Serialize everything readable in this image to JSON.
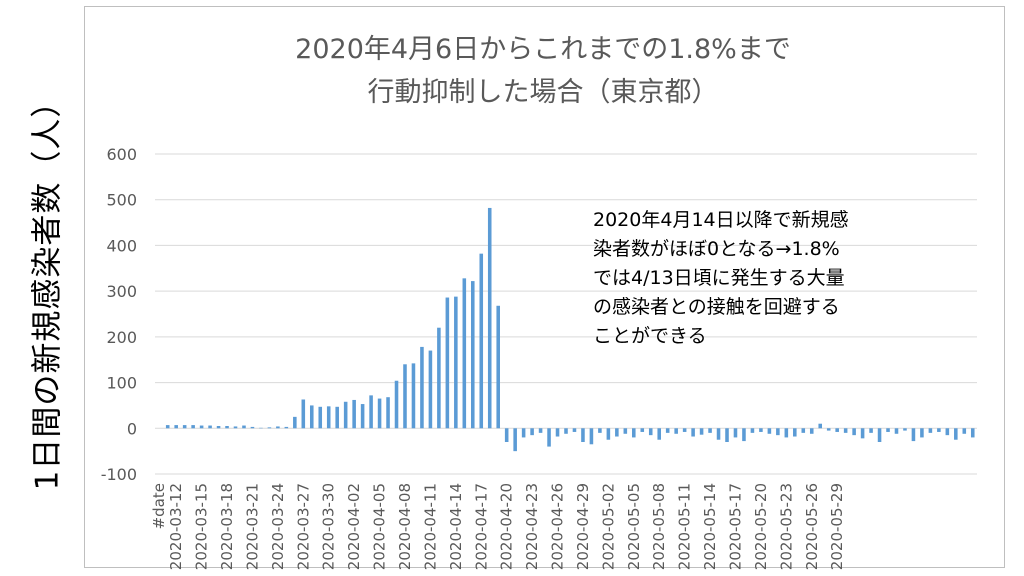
{
  "chart_data": {
    "type": "bar",
    "title_lines": [
      "2020年4月6日からこれまでの1.8%まで",
      "行動抑制した場合（東京都）"
    ],
    "ylabel": "1日間の新規感染者数（人）",
    "xlabel": "",
    "ylim": [
      -100,
      600
    ],
    "yticks": [
      -100,
      0,
      100,
      200,
      300,
      400,
      500,
      600
    ],
    "grid": true,
    "legend": "none",
    "bar_color": "#5b9bd5",
    "first_category": "#date",
    "start_date": "2020-03-10",
    "x_tick_labels": [
      "#date",
      "2020-03-12",
      "2020-03-15",
      "2020-03-18",
      "2020-03-21",
      "2020-03-24",
      "2020-03-27",
      "2020-03-30",
      "2020-04-02",
      "2020-04-05",
      "2020-04-08",
      "2020-04-11",
      "2020-04-14",
      "2020-04-17",
      "2020-04-20",
      "2020-04-23",
      "2020-04-26",
      "2020-04-29",
      "2020-05-02",
      "2020-05-05",
      "2020-05-08",
      "2020-05-11",
      "2020-05-14",
      "2020-05-17",
      "2020-05-20",
      "2020-05-23",
      "2020-05-26",
      "2020-05-29"
    ],
    "values": [
      0,
      7,
      7,
      7,
      7,
      6,
      6,
      5,
      5,
      4,
      6,
      3,
      1,
      2,
      4,
      3,
      25,
      63,
      50,
      47,
      48,
      47,
      58,
      62,
      53,
      72,
      65,
      68,
      104,
      140,
      142,
      178,
      170,
      220,
      286,
      288,
      328,
      322,
      382,
      482,
      268,
      -30,
      -50,
      -20,
      -15,
      -10,
      -40,
      -18,
      -12,
      -8,
      -30,
      -35,
      -10,
      -25,
      -18,
      -12,
      -20,
      -8,
      -15,
      -25,
      -10,
      -12,
      -8,
      -18,
      -14,
      -10,
      -25,
      -30,
      -20,
      -28,
      -10,
      -8,
      -12,
      -15,
      -20,
      -18,
      -10,
      -12,
      10,
      -5,
      -8,
      -10,
      -15,
      -22,
      -10,
      -30,
      -8,
      -12,
      -5,
      -28,
      -20,
      -10,
      -8,
      -15,
      -25,
      -12,
      -20
    ],
    "annotation_lines": [
      "2020年4月14日以降で新規感",
      "染者数がほぼ0となる→1.8%",
      "では4/13日頃に発生する大量",
      "の感染者との接触を回避する",
      "ことができる"
    ]
  }
}
